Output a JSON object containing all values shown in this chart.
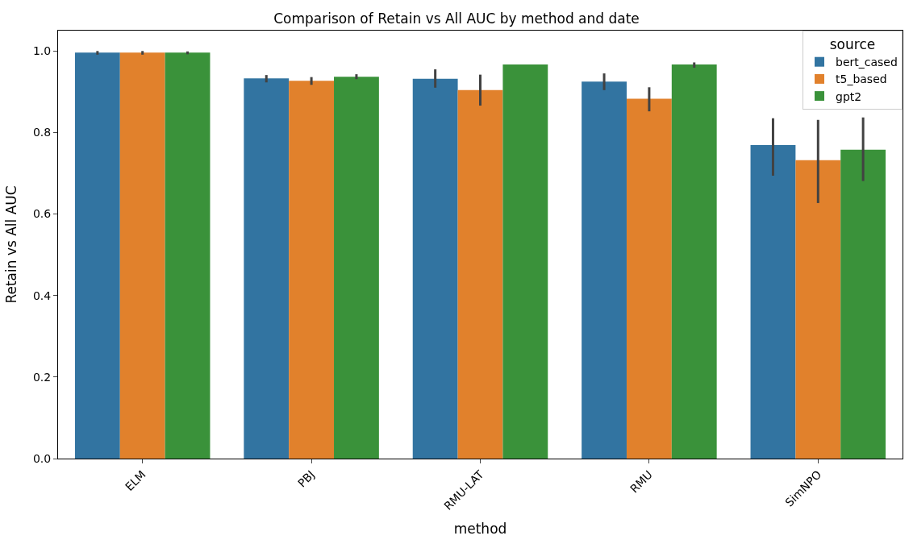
{
  "chart_data": {
    "type": "bar",
    "title": "Comparison of Retain vs All AUC by method and date",
    "xlabel": "method",
    "ylabel": "Retain vs All AUC",
    "legend_title": "source",
    "categories": [
      "ELM",
      "PBJ",
      "RMU-LAT",
      "RMU",
      "SimNPO"
    ],
    "series": [
      {
        "name": "bert_cased",
        "color": "#3274a1",
        "values": [
          0.996,
          0.933,
          0.932,
          0.925,
          0.769
        ],
        "errors": [
          [
            0.991,
            1.0
          ],
          [
            0.923,
            0.941
          ],
          [
            0.91,
            0.955
          ],
          [
            0.904,
            0.945
          ],
          [
            0.694,
            0.835
          ]
        ]
      },
      {
        "name": "t5_based",
        "color": "#e1812c",
        "values": [
          0.996,
          0.927,
          0.904,
          0.883,
          0.732
        ],
        "errors": [
          [
            0.991,
            1.0
          ],
          [
            0.917,
            0.936
          ],
          [
            0.866,
            0.942
          ],
          [
            0.852,
            0.911
          ],
          [
            0.627,
            0.831
          ]
        ]
      },
      {
        "name": "gpt2",
        "color": "#3a923a",
        "values": [
          0.996,
          0.937,
          0.967,
          0.967,
          0.758
        ],
        "errors": [
          [
            0.992,
            0.999
          ],
          [
            0.931,
            0.943
          ],
          null,
          [
            0.959,
            0.972
          ],
          [
            0.681,
            0.837
          ]
        ]
      }
    ],
    "ylim": [
      0,
      1.05
    ],
    "yticks": [
      {
        "value": 0,
        "label": "0.0"
      },
      {
        "value": 0.2,
        "label": "0.2"
      },
      {
        "value": 0.4,
        "label": "0.4"
      },
      {
        "value": 0.6,
        "label": "0.6"
      },
      {
        "value": 0.8,
        "label": "0.8"
      },
      {
        "value": 1.0,
        "label": "1.0"
      }
    ],
    "legend": "top right"
  }
}
